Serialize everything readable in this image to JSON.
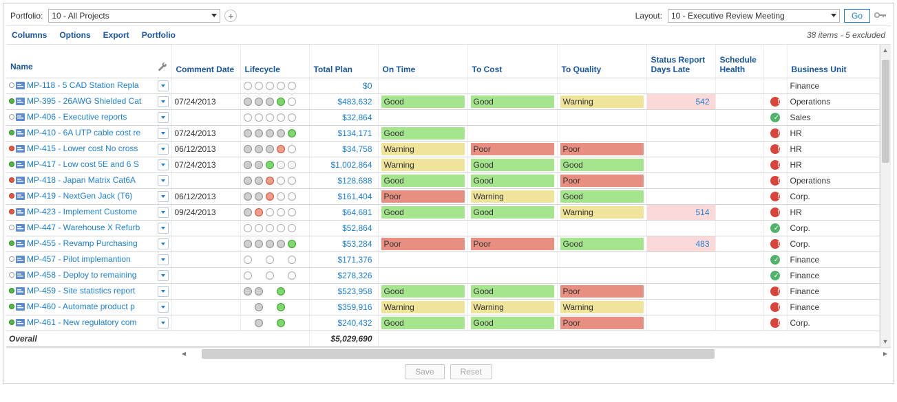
{
  "topbar": {
    "portfolio_label": "Portfolio:",
    "portfolio_value": "10 - All Projects",
    "layout_label": "Layout:",
    "layout_value": "10 - Executive Review Meeting",
    "go_label": "Go"
  },
  "menu": {
    "columns": "Columns",
    "options": "Options",
    "export": "Export",
    "portfolio": "Portfolio",
    "status": "38 items - 5 excluded"
  },
  "columns": {
    "name": "Name",
    "comment_date": "Comment Date",
    "lifecycle": "Lifecycle",
    "total_plan": "Total Plan",
    "on_time": "On Time",
    "to_cost": "To Cost",
    "to_quality": "To Quality",
    "days_late": "Status Report Days Late",
    "sched_health": "Schedule Health",
    "bu": "Business Unit"
  },
  "rag_labels": {
    "good": "Good",
    "warning": "Warning",
    "poor": "Poor"
  },
  "colors": {
    "link": "#1c7fd4",
    "header": "#1856a3",
    "good": "#a5e58e",
    "warning": "#efe49a",
    "poor": "#e98f81",
    "late_bg": "#fcd9d9",
    "health_ok": "#4fb36a",
    "health_bad": "#d9453a"
  },
  "overall": {
    "label": "Overall",
    "total": "$5,029,690"
  },
  "footer": {
    "save": "Save",
    "reset": "Reset"
  },
  "column_widths": {
    "name": 240,
    "comment_date": 100,
    "lifecycle": 100,
    "total_plan": 100,
    "on_time": 130,
    "to_cost": 130,
    "to_quality": 130,
    "days_late": 100,
    "sched_health": 70,
    "health_icon": 34,
    "bu": 134
  },
  "rows": [
    {
      "ind": "none",
      "name": "MP-118 - 5 CAD Station Repla",
      "date": "",
      "lc": [
        "e",
        "e",
        "e",
        "e",
        "e"
      ],
      "plan": "$0",
      "ot": "",
      "tc": "",
      "tq": "",
      "days": "",
      "late": false,
      "health": "",
      "bu": "Finance"
    },
    {
      "ind": "green",
      "name": "MP-395 - 26AWG Shielded Cat",
      "date": "07/24/2013",
      "lc": [
        "f",
        "f",
        "f",
        "g",
        "e"
      ],
      "plan": "$483,632",
      "ot": "good",
      "tc": "good",
      "tq": "warning",
      "days": "542",
      "late": true,
      "health": "bad",
      "bu": "Operations"
    },
    {
      "ind": "none",
      "name": "MP-406 - Executive reports",
      "date": "",
      "lc": [
        "e",
        "e",
        "e",
        "e",
        "e"
      ],
      "plan": "$32,864",
      "ot": "",
      "tc": "",
      "tq": "",
      "days": "",
      "late": false,
      "health": "ok",
      "bu": "Sales"
    },
    {
      "ind": "green",
      "name": "MP-410 - 6A UTP cable cost re",
      "date": "07/24/2013",
      "lc": [
        "f",
        "f",
        "f",
        "f",
        "g"
      ],
      "plan": "$134,171",
      "ot": "good",
      "tc": "",
      "tq": "",
      "days": "",
      "late": false,
      "health": "bad",
      "bu": "HR"
    },
    {
      "ind": "red",
      "name": "MP-415 - Lower cost No cross",
      "date": "06/12/2013",
      "lc": [
        "f",
        "f",
        "f",
        "r",
        "e"
      ],
      "plan": "$34,758",
      "ot": "warning",
      "tc": "poor",
      "tq": "poor",
      "days": "",
      "late": false,
      "health": "bad",
      "bu": "HR"
    },
    {
      "ind": "green",
      "name": "MP-417 - Low cost 5E and 6 S",
      "date": "07/24/2013",
      "lc": [
        "f",
        "f",
        "g",
        "e",
        "e"
      ],
      "plan": "$1,002,864",
      "ot": "warning",
      "tc": "good",
      "tq": "good",
      "days": "",
      "late": false,
      "health": "bad",
      "bu": "HR"
    },
    {
      "ind": "red",
      "name": "MP-418 - Japan Matrix Cat6A",
      "date": "",
      "lc": [
        "f",
        "f",
        "r",
        "e",
        "e"
      ],
      "plan": "$128,688",
      "ot": "good",
      "tc": "good",
      "tq": "poor",
      "days": "",
      "late": false,
      "health": "bad",
      "bu": "Operations"
    },
    {
      "ind": "red",
      "name": "MP-419 - NextGen Jack (T6)",
      "date": "06/12/2013",
      "lc": [
        "f",
        "f",
        "r",
        "e",
        "e"
      ],
      "plan": "$161,404",
      "ot": "poor",
      "tc": "warning",
      "tq": "good",
      "days": "",
      "late": false,
      "health": "bad",
      "bu": "Corp."
    },
    {
      "ind": "red",
      "name": "MP-423 - Implement Custome",
      "date": "09/24/2013",
      "lc": [
        "f",
        "r",
        "e",
        "e",
        "e"
      ],
      "plan": "$64,681",
      "ot": "good",
      "tc": "good",
      "tq": "warning",
      "days": "514",
      "late": true,
      "health": "bad",
      "bu": "HR"
    },
    {
      "ind": "none",
      "name": "MP-447 - Warehouse X Refurb",
      "date": "",
      "lc": [
        "e",
        "e",
        "e",
        "e",
        "e"
      ],
      "plan": "$52,864",
      "ot": "",
      "tc": "",
      "tq": "",
      "days": "",
      "late": false,
      "health": "ok",
      "bu": "Corp."
    },
    {
      "ind": "green",
      "name": "MP-455 - Revamp Purchasing",
      "date": "",
      "lc": [
        "f",
        "f",
        "f",
        "f",
        "g"
      ],
      "plan": "$53,284",
      "ot": "poor",
      "tc": "poor",
      "tq": "good",
      "days": "483",
      "late": true,
      "health": "bad",
      "bu": "Corp."
    },
    {
      "ind": "none",
      "name": "MP-457 - Pilot implemantion",
      "date": "",
      "lc": [
        "e",
        "",
        "e",
        "",
        "e"
      ],
      "plan": "$171,376",
      "ot": "",
      "tc": "",
      "tq": "",
      "days": "",
      "late": false,
      "health": "ok",
      "bu": "Finance"
    },
    {
      "ind": "none",
      "name": "MP-458 - Deploy to remaining",
      "date": "",
      "lc": [
        "e",
        "",
        "e",
        "",
        "e"
      ],
      "plan": "$278,326",
      "ot": "",
      "tc": "",
      "tq": "",
      "days": "",
      "late": false,
      "health": "ok",
      "bu": "Finance"
    },
    {
      "ind": "green",
      "name": "MP-459 - Site statistics report",
      "date": "",
      "lc": [
        "f",
        "f",
        "",
        "g",
        ""
      ],
      "plan": "$523,958",
      "ot": "good",
      "tc": "good",
      "tq": "poor",
      "days": "",
      "late": false,
      "health": "bad",
      "bu": "Finance"
    },
    {
      "ind": "green",
      "name": "MP-460 - Automate product p",
      "date": "",
      "lc": [
        "",
        "f",
        "",
        "g",
        ""
      ],
      "plan": "$359,916",
      "ot": "warning",
      "tc": "warning",
      "tq": "warning",
      "days": "",
      "late": false,
      "health": "bad",
      "bu": "Finance"
    },
    {
      "ind": "green",
      "name": "MP-461 - New regulatory com",
      "date": "",
      "lc": [
        "",
        "f",
        "",
        "g",
        ""
      ],
      "plan": "$240,432",
      "ot": "good",
      "tc": "good",
      "tq": "poor",
      "days": "",
      "late": false,
      "health": "bad",
      "bu": "Corp."
    }
  ]
}
